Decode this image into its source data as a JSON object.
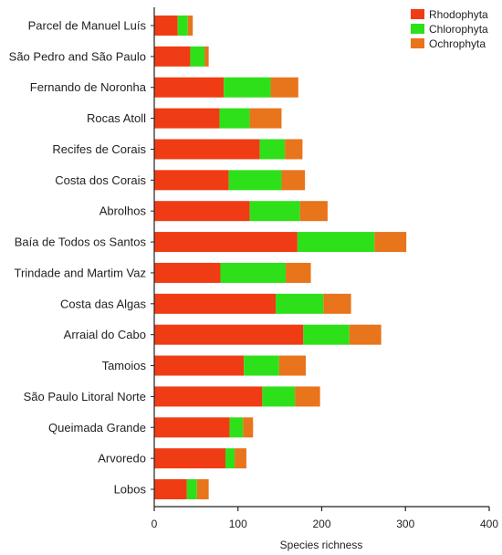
{
  "chart_data": {
    "type": "bar",
    "orientation": "horizontal",
    "stacked": true,
    "categories": [
      "Parcel de Manuel Luís",
      "São Pedro and São Paulo",
      "Fernando de Noronha",
      "Rocas Atoll",
      "Recifes de Corais",
      "Costa dos Corais",
      "Abrolhos",
      "Baía de Todos os Santos",
      "Trindade and Martim Vaz",
      "Costa das Algas",
      "Arraial do Cabo",
      "Tamoios",
      "São Paulo Litoral Norte",
      "Queimada Grande",
      "Arvoredo",
      "Lobos"
    ],
    "series": [
      {
        "name": "Rhodophyta",
        "color": "#f03c14",
        "values": [
          28,
          43,
          83,
          78,
          126,
          89,
          114,
          171,
          79,
          145,
          178,
          107,
          129,
          90,
          85,
          39
        ]
      },
      {
        "name": "Chlorophyta",
        "color": "#2ee019",
        "values": [
          12,
          17,
          56,
          36,
          30,
          63,
          60,
          92,
          78,
          57,
          55,
          42,
          39,
          16,
          11,
          12
        ]
      },
      {
        "name": "Ochrophyta",
        "color": "#e8741c",
        "values": [
          6,
          5,
          33,
          38,
          21,
          28,
          33,
          38,
          30,
          33,
          38,
          32,
          30,
          12,
          14,
          14
        ]
      }
    ],
    "xlabel": "Species richness",
    "ylabel": "",
    "xlim": [
      0,
      400
    ],
    "xticks": [
      0,
      100,
      200,
      300,
      400
    ],
    "grid": false,
    "legend_position": "top-right"
  }
}
